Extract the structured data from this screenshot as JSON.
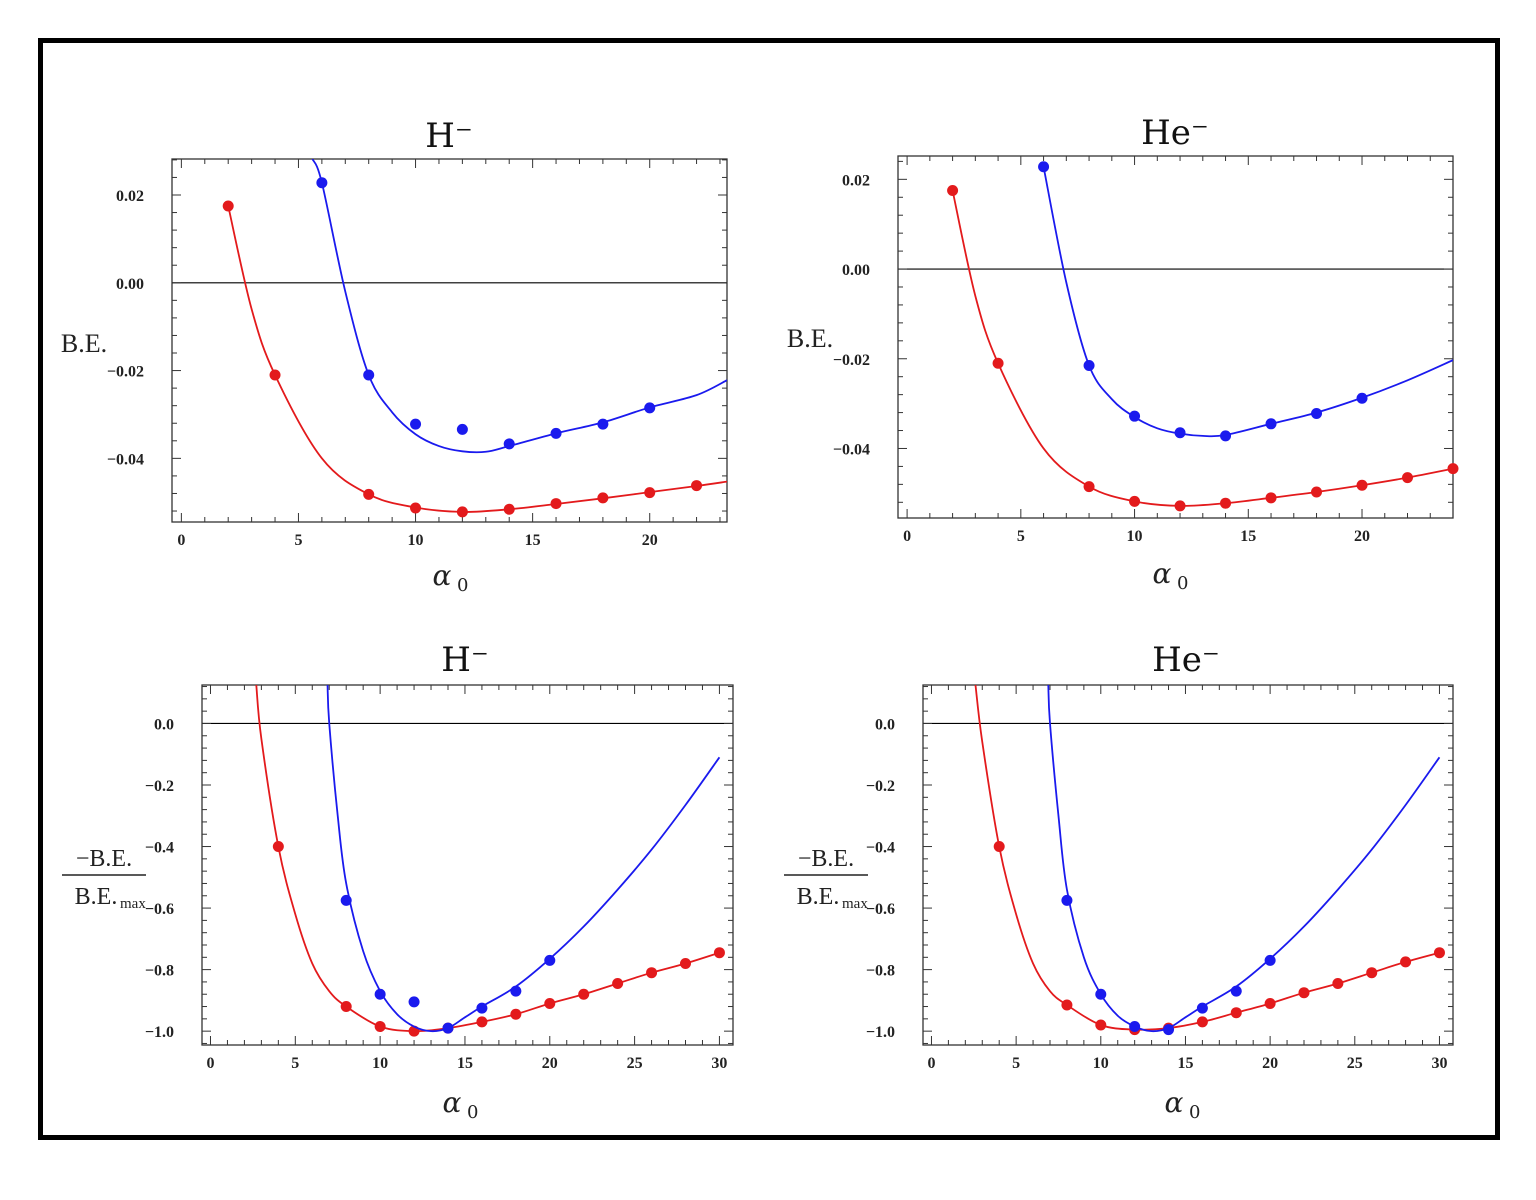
{
  "colors": {
    "series1": "#e31a1c",
    "series2": "#1a1aee",
    "axis": "#333333",
    "zero_line": "#000000"
  },
  "chart_data": [
    {
      "id": "p1",
      "type": "scatter",
      "title": "H⁻",
      "xlabel": "α",
      "xlabel_sub": "0",
      "ylabel_text": "B.E.",
      "ylabel_num": "",
      "ylabel_den": "",
      "ylabel_den_sub": "",
      "xlim": [
        -0.4,
        23.3
      ],
      "ylim": [
        -0.0545,
        0.0282
      ],
      "xticks": [
        0,
        5,
        10,
        15,
        20
      ],
      "xtick_labels": [
        "0",
        "5",
        "10",
        "15",
        "20"
      ],
      "yticks": [
        0.02,
        0.0,
        -0.02,
        -0.04
      ],
      "ytick_labels": [
        "0.02",
        "0.00",
        "−0.02",
        "−0.04"
      ],
      "series": [
        {
          "name": "red",
          "color": "#e31a1c",
          "points": [
            [
              2,
              0.0175
            ],
            [
              4,
              -0.021
            ],
            [
              8,
              -0.0482
            ],
            [
              10,
              -0.0513
            ],
            [
              12,
              -0.0522
            ],
            [
              14,
              -0.0516
            ],
            [
              16,
              -0.0503
            ],
            [
              18,
              -0.049
            ],
            [
              20,
              -0.0478
            ],
            [
              22,
              -0.0462
            ]
          ],
          "curve": [
            [
              2,
              0.0175
            ],
            [
              3,
              -0.006
            ],
            [
              4,
              -0.021
            ],
            [
              6,
              -0.04
            ],
            [
              8,
              -0.0482
            ],
            [
              10,
              -0.0512
            ],
            [
              12,
              -0.0522
            ],
            [
              14,
              -0.0516
            ],
            [
              16,
              -0.0504
            ],
            [
              18,
              -0.0491
            ],
            [
              20,
              -0.0477
            ],
            [
              22,
              -0.0463
            ],
            [
              23.3,
              -0.0453
            ]
          ]
        },
        {
          "name": "blue",
          "color": "#1a1aee",
          "points": [
            [
              6,
              0.0228
            ],
            [
              8,
              -0.021
            ],
            [
              10,
              -0.0322
            ],
            [
              12,
              -0.0334
            ],
            [
              14,
              -0.0367
            ],
            [
              16,
              -0.0343
            ],
            [
              18,
              -0.0322
            ],
            [
              20,
              -0.0285
            ]
          ],
          "curve": [
            [
              5.6,
              0.0282
            ],
            [
              6,
              0.0228
            ],
            [
              7,
              -0.002
            ],
            [
              8,
              -0.021
            ],
            [
              9,
              -0.0295
            ],
            [
              10,
              -0.0345
            ],
            [
              11,
              -0.0372
            ],
            [
              12,
              -0.0384
            ],
            [
              13,
              -0.0385
            ],
            [
              14,
              -0.0372
            ],
            [
              16,
              -0.0343
            ],
            [
              18,
              -0.0318
            ],
            [
              20,
              -0.0284
            ],
            [
              22,
              -0.0256
            ],
            [
              23.3,
              -0.0222
            ]
          ]
        }
      ]
    },
    {
      "id": "p2",
      "type": "scatter",
      "title": "He⁻",
      "xlabel": "α",
      "xlabel_sub": "0",
      "ylabel_text": "B.E.",
      "ylabel_num": "",
      "ylabel_den": "",
      "ylabel_den_sub": "",
      "xlim": [
        -0.4,
        24.0
      ],
      "ylim": [
        -0.0555,
        0.0252
      ],
      "xticks": [
        0,
        5,
        10,
        15,
        20
      ],
      "xtick_labels": [
        "0",
        "5",
        "10",
        "15",
        "20"
      ],
      "yticks": [
        0.02,
        0.0,
        -0.02,
        -0.04
      ],
      "ytick_labels": [
        "0.02",
        "0.00",
        "−0.02",
        "−0.04"
      ],
      "series": [
        {
          "name": "red",
          "color": "#e31a1c",
          "points": [
            [
              2,
              0.0175
            ],
            [
              4,
              -0.021
            ],
            [
              8,
              -0.0485
            ],
            [
              10,
              -0.0518
            ],
            [
              12,
              -0.0528
            ],
            [
              14,
              -0.0522
            ],
            [
              16,
              -0.051
            ],
            [
              18,
              -0.0497
            ],
            [
              20,
              -0.0482
            ],
            [
              22,
              -0.0465
            ],
            [
              24,
              -0.0445
            ]
          ],
          "curve": [
            [
              2,
              0.0175
            ],
            [
              3,
              -0.006
            ],
            [
              4,
              -0.021
            ],
            [
              6,
              -0.04
            ],
            [
              8,
              -0.0485
            ],
            [
              10,
              -0.0518
            ],
            [
              12,
              -0.0528
            ],
            [
              14,
              -0.0522
            ],
            [
              16,
              -0.051
            ],
            [
              18,
              -0.0497
            ],
            [
              20,
              -0.0482
            ],
            [
              22,
              -0.0465
            ],
            [
              24,
              -0.0445
            ]
          ]
        },
        {
          "name": "blue",
          "color": "#1a1aee",
          "points": [
            [
              6,
              0.0228
            ],
            [
              8,
              -0.0215
            ],
            [
              10,
              -0.0328
            ],
            [
              12,
              -0.0365
            ],
            [
              14,
              -0.0372
            ],
            [
              16,
              -0.0345
            ],
            [
              18,
              -0.0322
            ],
            [
              20,
              -0.0288
            ]
          ],
          "curve": [
            [
              6,
              0.0228
            ],
            [
              7,
              -0.003
            ],
            [
              8,
              -0.0215
            ],
            [
              9,
              -0.029
            ],
            [
              10,
              -0.033
            ],
            [
              11,
              -0.0355
            ],
            [
              12,
              -0.0367
            ],
            [
              13,
              -0.0372
            ],
            [
              14,
              -0.037
            ],
            [
              16,
              -0.0345
            ],
            [
              18,
              -0.032
            ],
            [
              20,
              -0.0287
            ],
            [
              22,
              -0.0248
            ],
            [
              24,
              -0.0203
            ]
          ]
        }
      ]
    },
    {
      "id": "p3",
      "type": "scatter",
      "title": "H⁻",
      "xlabel": "α",
      "xlabel_sub": "0",
      "ylabel_text": "",
      "ylabel_num": "−B.E.",
      "ylabel_den": "B.E.",
      "ylabel_den_sub": "max",
      "xlim": [
        -0.5,
        30.8
      ],
      "ylim": [
        -1.045,
        0.125
      ],
      "xticks": [
        0,
        5,
        10,
        15,
        20,
        25,
        30
      ],
      "xtick_labels": [
        "0",
        "5",
        "10",
        "15",
        "20",
        "25",
        "30"
      ],
      "yticks": [
        0.0,
        -0.2,
        -0.4,
        -0.6,
        -0.8,
        -1.0
      ],
      "ytick_labels": [
        "0.0",
        "−0.2",
        "−0.4",
        "−0.6",
        "−0.8",
        "−1.0"
      ],
      "series": [
        {
          "name": "red",
          "color": "#e31a1c",
          "points": [
            [
              4,
              -0.4
            ],
            [
              8,
              -0.92
            ],
            [
              10,
              -0.985
            ],
            [
              12,
              -1.0
            ],
            [
              14,
              -0.99
            ],
            [
              16,
              -0.97
            ],
            [
              18,
              -0.945
            ],
            [
              20,
              -0.91
            ],
            [
              22,
              -0.88
            ],
            [
              24,
              -0.845
            ],
            [
              26,
              -0.81
            ],
            [
              28,
              -0.78
            ],
            [
              30,
              -0.745
            ]
          ],
          "curve": [
            [
              2.7,
              0.125
            ],
            [
              3,
              -0.05
            ],
            [
              4,
              -0.4
            ],
            [
              5,
              -0.62
            ],
            [
              6,
              -0.78
            ],
            [
              7,
              -0.87
            ],
            [
              8,
              -0.92
            ],
            [
              10,
              -0.985
            ],
            [
              12,
              -1.0
            ],
            [
              14,
              -0.99
            ],
            [
              16,
              -0.97
            ],
            [
              18,
              -0.945
            ],
            [
              20,
              -0.91
            ],
            [
              22,
              -0.88
            ],
            [
              24,
              -0.845
            ],
            [
              26,
              -0.81
            ],
            [
              28,
              -0.78
            ],
            [
              30,
              -0.745
            ]
          ]
        },
        {
          "name": "blue",
          "color": "#1a1aee",
          "points": [
            [
              8,
              -0.575
            ],
            [
              10,
              -0.88
            ],
            [
              12,
              -0.905
            ],
            [
              14,
              -0.99
            ],
            [
              16,
              -0.925
            ],
            [
              18,
              -0.87
            ],
            [
              20,
              -0.77
            ]
          ],
          "curve": [
            [
              6.9,
              0.125
            ],
            [
              7,
              0.0
            ],
            [
              7.5,
              -0.3
            ],
            [
              8,
              -0.52
            ],
            [
              9,
              -0.74
            ],
            [
              10,
              -0.87
            ],
            [
              11,
              -0.945
            ],
            [
              12,
              -0.985
            ],
            [
              13,
              -1.0
            ],
            [
              14,
              -0.99
            ],
            [
              15,
              -0.955
            ],
            [
              16,
              -0.92
            ],
            [
              18,
              -0.855
            ],
            [
              20,
              -0.765
            ],
            [
              22,
              -0.66
            ],
            [
              24,
              -0.54
            ],
            [
              26,
              -0.41
            ],
            [
              28,
              -0.265
            ],
            [
              30,
              -0.11
            ]
          ]
        }
      ]
    },
    {
      "id": "p4",
      "type": "scatter",
      "title": "He⁻",
      "xlabel": "α",
      "xlabel_sub": "0",
      "ylabel_text": "",
      "ylabel_num": "−B.E.",
      "ylabel_den": "B.E.",
      "ylabel_den_sub": "max",
      "xlim": [
        -0.5,
        30.8
      ],
      "ylim": [
        -1.045,
        0.125
      ],
      "xticks": [
        0,
        5,
        10,
        15,
        20,
        25,
        30
      ],
      "xtick_labels": [
        "0",
        "5",
        "10",
        "15",
        "20",
        "25",
        "30"
      ],
      "yticks": [
        0.0,
        -0.2,
        -0.4,
        -0.6,
        -0.8,
        -1.0
      ],
      "ytick_labels": [
        "0.0",
        "−0.2",
        "−0.4",
        "−0.6",
        "−0.8",
        "−1.0"
      ],
      "series": [
        {
          "name": "red",
          "color": "#e31a1c",
          "points": [
            [
              4,
              -0.4
            ],
            [
              8,
              -0.915
            ],
            [
              10,
              -0.98
            ],
            [
              12,
              -0.995
            ],
            [
              14,
              -0.99
            ],
            [
              16,
              -0.97
            ],
            [
              18,
              -0.94
            ],
            [
              20,
              -0.91
            ],
            [
              22,
              -0.875
            ],
            [
              24,
              -0.845
            ],
            [
              26,
              -0.81
            ],
            [
              28,
              -0.775
            ],
            [
              30,
              -0.745
            ]
          ],
          "curve": [
            [
              2.6,
              0.125
            ],
            [
              3,
              -0.06
            ],
            [
              4,
              -0.4
            ],
            [
              5,
              -0.62
            ],
            [
              6,
              -0.78
            ],
            [
              7,
              -0.87
            ],
            [
              8,
              -0.915
            ],
            [
              10,
              -0.98
            ],
            [
              12,
              -0.995
            ],
            [
              14,
              -0.99
            ],
            [
              16,
              -0.97
            ],
            [
              18,
              -0.94
            ],
            [
              20,
              -0.91
            ],
            [
              22,
              -0.875
            ],
            [
              24,
              -0.845
            ],
            [
              26,
              -0.81
            ],
            [
              28,
              -0.775
            ],
            [
              30,
              -0.745
            ]
          ]
        },
        {
          "name": "blue",
          "color": "#1a1aee",
          "points": [
            [
              8,
              -0.575
            ],
            [
              10,
              -0.88
            ],
            [
              12,
              -0.985
            ],
            [
              14,
              -0.995
            ],
            [
              16,
              -0.925
            ],
            [
              18,
              -0.87
            ],
            [
              20,
              -0.77
            ]
          ],
          "curve": [
            [
              6.9,
              0.125
            ],
            [
              7,
              0.0
            ],
            [
              7.5,
              -0.3
            ],
            [
              8,
              -0.54
            ],
            [
              9,
              -0.76
            ],
            [
              10,
              -0.88
            ],
            [
              11,
              -0.95
            ],
            [
              12,
              -0.985
            ],
            [
              13,
              -1.0
            ],
            [
              14,
              -0.99
            ],
            [
              15,
              -0.955
            ],
            [
              16,
              -0.92
            ],
            [
              18,
              -0.855
            ],
            [
              20,
              -0.765
            ],
            [
              22,
              -0.66
            ],
            [
              24,
              -0.54
            ],
            [
              26,
              -0.41
            ],
            [
              28,
              -0.265
            ],
            [
              30,
              -0.11
            ]
          ]
        }
      ]
    }
  ]
}
